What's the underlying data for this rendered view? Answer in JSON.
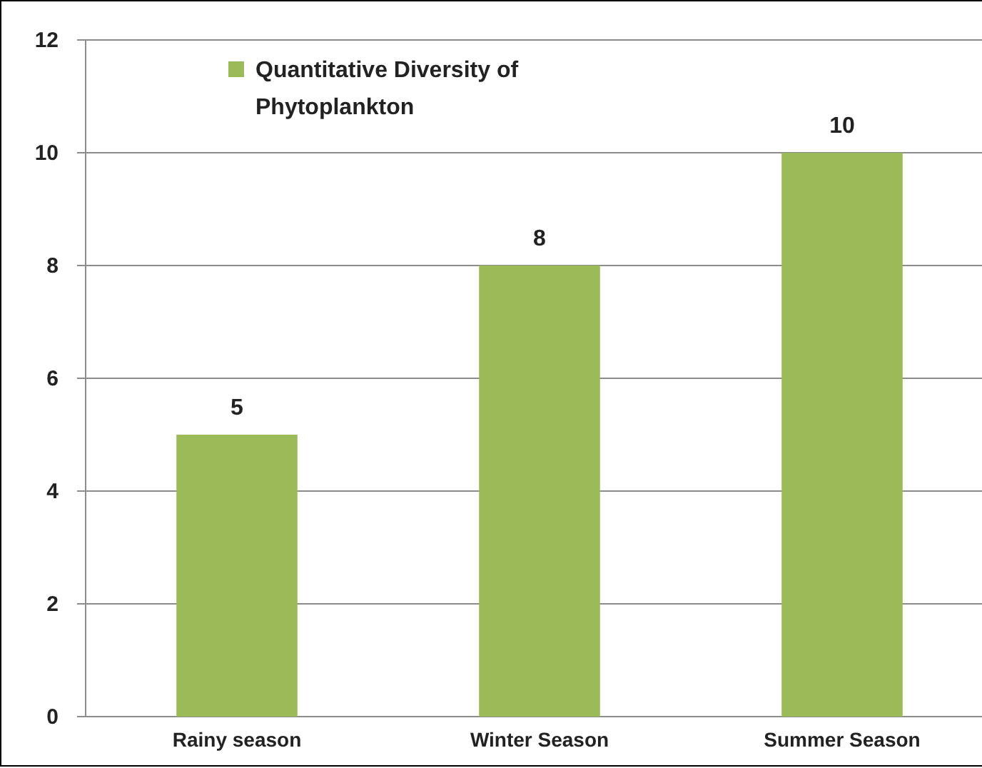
{
  "chart_data": {
    "type": "bar",
    "categories": [
      "Rainy season",
      "Winter Season",
      "Summer Season"
    ],
    "series": [
      {
        "name": "Quantitative Diversity of Phytoplankton",
        "color": "#9bbb59",
        "values": [
          5,
          8,
          10
        ]
      }
    ],
    "ylim": [
      0,
      12
    ],
    "yticks": [
      0,
      2,
      4,
      6,
      8,
      10,
      12
    ],
    "grid": "y",
    "legend": "top left",
    "data_labels": true
  }
}
